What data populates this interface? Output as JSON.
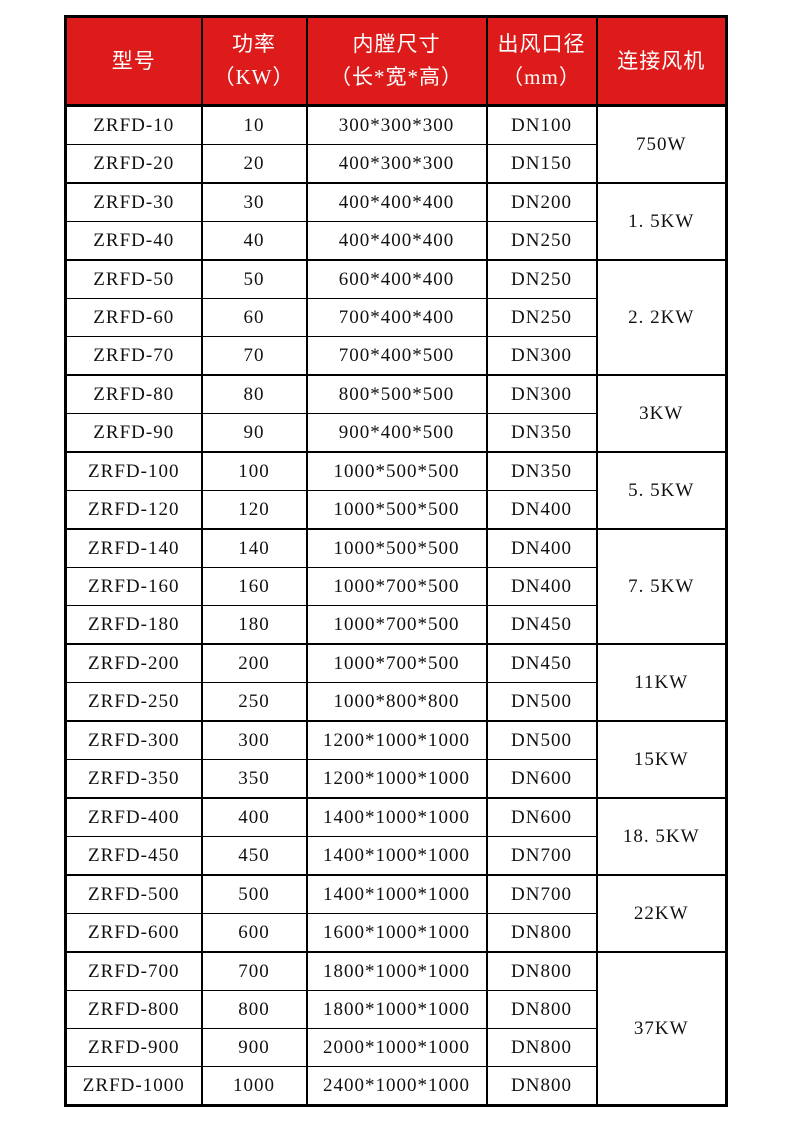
{
  "page": {
    "background_color": "#ffffff"
  },
  "table": {
    "header": {
      "bg_color": "#dd1b1b",
      "text_color": "#ffffff",
      "border_color": "#000000",
      "columns": [
        {
          "line1": "型号",
          "line2": ""
        },
        {
          "line1": "功率",
          "line2": "（KW）"
        },
        {
          "line1": "内膛尺寸",
          "line2": "（长*宽*高）"
        },
        {
          "line1": "出风口径",
          "line2": "（mm）"
        },
        {
          "line1": "连接风机",
          "line2": ""
        }
      ]
    },
    "rows": [
      {
        "model": "ZRFD-10",
        "power": "10",
        "size": "300*300*300",
        "outlet": "DN100"
      },
      {
        "model": "ZRFD-20",
        "power": "20",
        "size": "400*300*300",
        "outlet": "DN150"
      },
      {
        "model": "ZRFD-30",
        "power": "30",
        "size": "400*400*400",
        "outlet": "DN200"
      },
      {
        "model": "ZRFD-40",
        "power": "40",
        "size": "400*400*400",
        "outlet": "DN250"
      },
      {
        "model": "ZRFD-50",
        "power": "50",
        "size": "600*400*400",
        "outlet": "DN250"
      },
      {
        "model": "ZRFD-60",
        "power": "60",
        "size": "700*400*400",
        "outlet": "DN250"
      },
      {
        "model": "ZRFD-70",
        "power": "70",
        "size": "700*400*500",
        "outlet": "DN300"
      },
      {
        "model": "ZRFD-80",
        "power": "80",
        "size": "800*500*500",
        "outlet": "DN300"
      },
      {
        "model": "ZRFD-90",
        "power": "90",
        "size": "900*400*500",
        "outlet": "DN350"
      },
      {
        "model": "ZRFD-100",
        "power": "100",
        "size": "1000*500*500",
        "outlet": "DN350"
      },
      {
        "model": "ZRFD-120",
        "power": "120",
        "size": "1000*500*500",
        "outlet": "DN400"
      },
      {
        "model": "ZRFD-140",
        "power": "140",
        "size": "1000*500*500",
        "outlet": "DN400"
      },
      {
        "model": "ZRFD-160",
        "power": "160",
        "size": "1000*700*500",
        "outlet": "DN400"
      },
      {
        "model": "ZRFD-180",
        "power": "180",
        "size": "1000*700*500",
        "outlet": "DN450"
      },
      {
        "model": "ZRFD-200",
        "power": "200",
        "size": "1000*700*500",
        "outlet": "DN450"
      },
      {
        "model": "ZRFD-250",
        "power": "250",
        "size": "1000*800*800",
        "outlet": "DN500"
      },
      {
        "model": "ZRFD-300",
        "power": "300",
        "size": "1200*1000*1000",
        "outlet": "DN500"
      },
      {
        "model": "ZRFD-350",
        "power": "350",
        "size": "1200*1000*1000",
        "outlet": "DN600"
      },
      {
        "model": "ZRFD-400",
        "power": "400",
        "size": "1400*1000*1000",
        "outlet": "DN600"
      },
      {
        "model": "ZRFD-450",
        "power": "450",
        "size": "1400*1000*1000",
        "outlet": "DN700"
      },
      {
        "model": "ZRFD-500",
        "power": "500",
        "size": "1400*1000*1000",
        "outlet": "DN700"
      },
      {
        "model": "ZRFD-600",
        "power": "600",
        "size": "1600*1000*1000",
        "outlet": "DN800"
      },
      {
        "model": "ZRFD-700",
        "power": "700",
        "size": "1800*1000*1000",
        "outlet": "DN800"
      },
      {
        "model": "ZRFD-800",
        "power": "800",
        "size": "1800*1000*1000",
        "outlet": "DN800"
      },
      {
        "model": "ZRFD-900",
        "power": "900",
        "size": "2000*1000*1000",
        "outlet": "DN800"
      },
      {
        "model": "ZRFD-1000",
        "power": "1000",
        "size": "2400*1000*1000",
        "outlet": "DN800"
      }
    ],
    "fan_groups": [
      {
        "label": "750W",
        "span": 2
      },
      {
        "label": "1. 5KW",
        "span": 2
      },
      {
        "label": "2. 2KW",
        "span": 3
      },
      {
        "label": "3KW",
        "span": 2
      },
      {
        "label": "5. 5KW",
        "span": 2
      },
      {
        "label": "7. 5KW",
        "span": 3
      },
      {
        "label": "11KW",
        "span": 2
      },
      {
        "label": "15KW",
        "span": 2
      },
      {
        "label": "18. 5KW",
        "span": 2
      },
      {
        "label": "22KW",
        "span": 2
      },
      {
        "label": "37KW",
        "span": 4
      }
    ]
  }
}
